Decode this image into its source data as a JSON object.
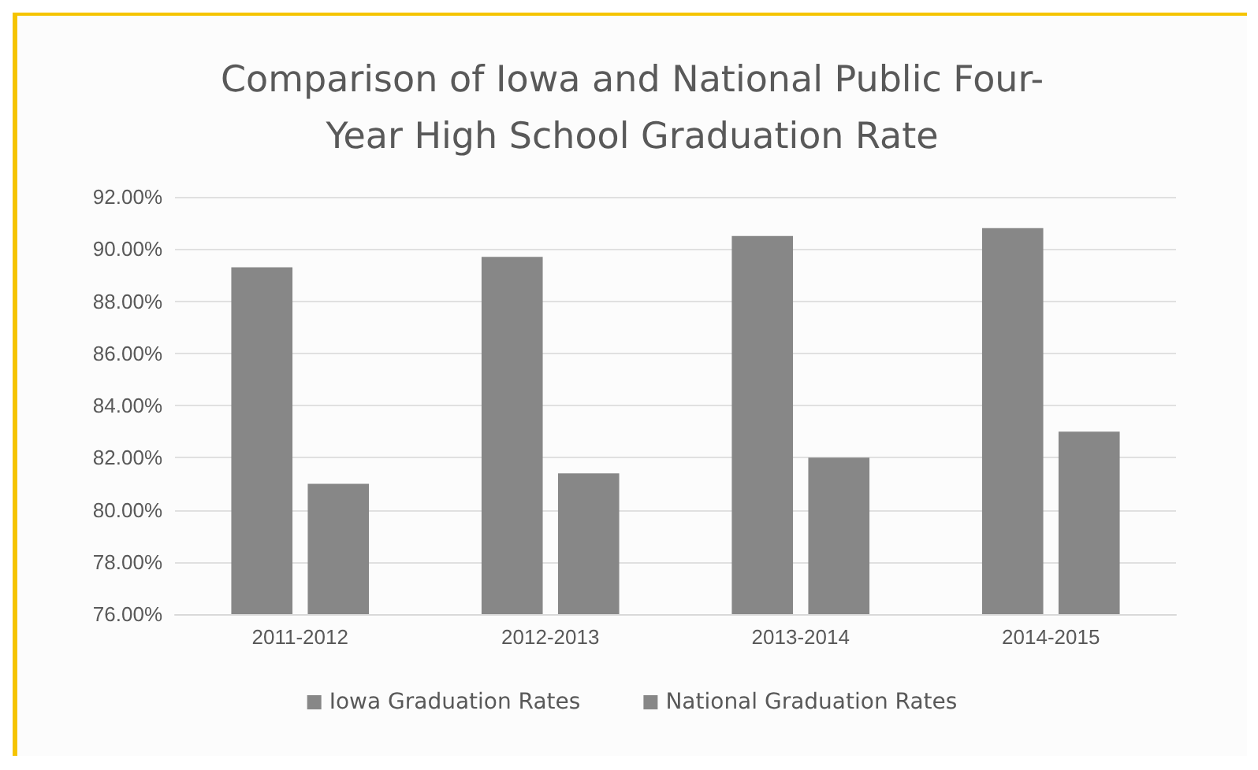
{
  "chart_data": {
    "type": "bar",
    "title": "Comparison of Iowa and National Public Four-\nYear High School Graduation Rate",
    "categories": [
      "2011-2012",
      "2012-2013",
      "2013-2014",
      "2014-2015"
    ],
    "series": [
      {
        "name": "Iowa Graduation Rates",
        "color": "#878787",
        "values": [
          89.3,
          89.7,
          90.5,
          90.8
        ]
      },
      {
        "name": "National Graduation Rates",
        "color": "#878787",
        "values": [
          81.0,
          81.4,
          82.0,
          83.0
        ]
      }
    ],
    "ylim": [
      76,
      92
    ],
    "yticks": [
      {
        "value": 76,
        "label": "76.00%"
      },
      {
        "value": 78,
        "label": "78.00%"
      },
      {
        "value": 80,
        "label": "80.00%"
      },
      {
        "value": 82,
        "label": "82.00%"
      },
      {
        "value": 84,
        "label": "84.00%"
      },
      {
        "value": 86,
        "label": "86.00%"
      },
      {
        "value": 88,
        "label": "88.00%"
      },
      {
        "value": 90,
        "label": "90.00%"
      },
      {
        "value": 92,
        "label": "92.00%"
      }
    ],
    "grid": "y",
    "legend": "bottom"
  }
}
